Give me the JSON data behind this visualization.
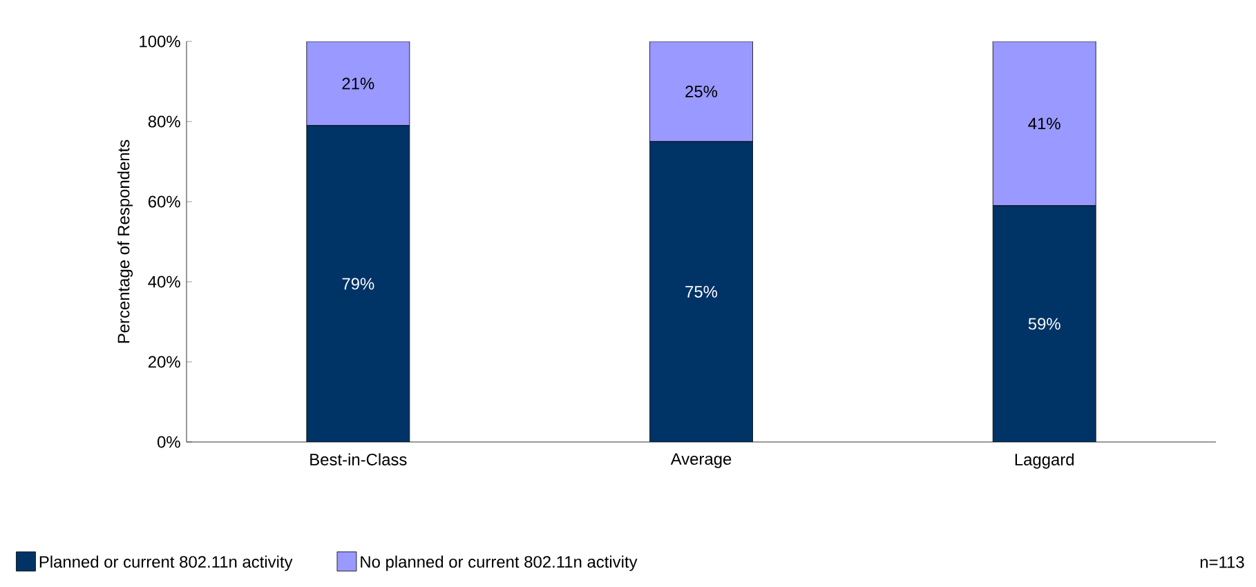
{
  "chart_data": {
    "type": "bar",
    "stacked": true,
    "ylabel": "Percentage of Respondents",
    "categories": [
      "Best-in-Class",
      "Average",
      "Laggard"
    ],
    "series": [
      {
        "name": "Planned or current 802.11n activity",
        "color": "#003366",
        "values": [
          79,
          75,
          59
        ],
        "value_labels": [
          "79%",
          "75%",
          "59%"
        ]
      },
      {
        "name": "No planned or current 802.11n activity",
        "color": "#9999ff",
        "values": [
          21,
          25,
          41
        ],
        "value_labels": [
          "21%",
          "25%",
          "41%"
        ]
      }
    ],
    "ylim": [
      0,
      100
    ],
    "yticks": [
      {
        "value": 0,
        "label": "0%"
      },
      {
        "value": 20,
        "label": "20%"
      },
      {
        "value": 40,
        "label": "40%"
      },
      {
        "value": 60,
        "label": "60%"
      },
      {
        "value": 80,
        "label": "80%"
      },
      {
        "value": 100,
        "label": "100%"
      }
    ],
    "grid": false,
    "legend": "bottom",
    "annotations": [
      "n=113"
    ]
  }
}
